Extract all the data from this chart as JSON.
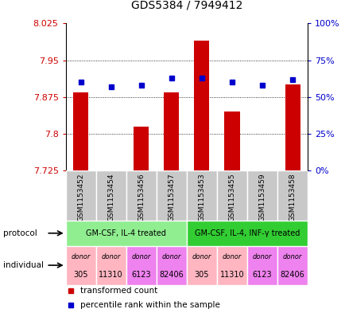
{
  "title": "GDS5384 / 7949412",
  "samples": [
    "GSM1153452",
    "GSM1153454",
    "GSM1153456",
    "GSM1153457",
    "GSM1153453",
    "GSM1153455",
    "GSM1153459",
    "GSM1153458"
  ],
  "transformed_counts": [
    7.884,
    7.725,
    7.815,
    7.884,
    7.99,
    7.845,
    7.726,
    7.9
  ],
  "percentile_ranks": [
    60,
    57,
    58,
    63,
    63,
    60,
    58,
    62
  ],
  "y_min": 7.725,
  "y_max": 8.025,
  "y_ticks": [
    7.725,
    7.8,
    7.875,
    7.95,
    8.025
  ],
  "y2_ticks": [
    0,
    25,
    50,
    75,
    100
  ],
  "protocols": [
    {
      "label": "GM-CSF, IL-4 treated",
      "start": 0,
      "end": 4,
      "color": "#90EE90"
    },
    {
      "label": "GM-CSF, IL-4, INF-γ treated",
      "start": 4,
      "end": 8,
      "color": "#32CD32"
    }
  ],
  "ind_colors": [
    "#FFB6C1",
    "#FFB6C1",
    "#EE82EE",
    "#EE82EE",
    "#FFB6C1",
    "#FFB6C1",
    "#EE82EE",
    "#EE82EE"
  ],
  "ind_labels_top": [
    "donor",
    "donor",
    "donor",
    "donor",
    "donor",
    "donor",
    "donor",
    "donor"
  ],
  "ind_labels_bot": [
    "305",
    "11310",
    "6123",
    "82406",
    "305",
    "11310",
    "6123",
    "82406"
  ],
  "bar_color": "#CC0000",
  "dot_color": "#0000CC",
  "bar_base": 7.725,
  "bar_width": 0.5,
  "left_label_color": "#CC0000",
  "right_label_color": "#0000CC",
  "sample_bg_color": "#C8C8C8",
  "grid_color": "black"
}
